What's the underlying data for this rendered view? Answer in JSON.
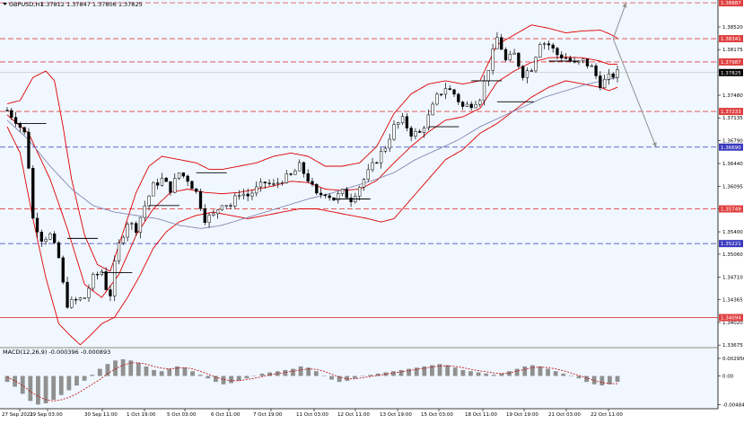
{
  "header": {
    "symbol": "GBPUSD,H1",
    "open": "1.37812",
    "high": "1.37847",
    "low": "1.37806",
    "close": "1.37825",
    "ohlc_text": "1.37812 1.37847 1.37806 1.37825"
  },
  "macd": {
    "label": "MACD(12,26,9) -0.000396 -0.000893",
    "ticks": [
      "0.002956",
      "0.00",
      "-0.004847"
    ]
  },
  "colors": {
    "background": "#F0F7FF",
    "bollinger": "#E00000",
    "ma": "#7A7AAA",
    "resistance": "#E04040",
    "support": "#3A3ABF",
    "candles": "#000000",
    "macd_hist": "#909090",
    "macd_signal": "#C00000",
    "arrows": "#909090",
    "price_tag": "#000000"
  },
  "chart_data": {
    "type": "candlestick",
    "ylim": [
      1.3365,
      1.3893
    ],
    "y_ticks": [
      "1.38520",
      "1.38175",
      "1.37480",
      "1.37135",
      "1.36790",
      "1.36440",
      "1.36095",
      "1.35750",
      "1.35400",
      "1.35060",
      "1.34710",
      "1.34365",
      "1.34020",
      "1.33675"
    ],
    "x_ticks": [
      "27 Sep 2021",
      "29 Sep 03:00",
      "30 Sep 11:00",
      "1 Oct 19:00",
      "5 Oct 03:00",
      "6 Oct 11:00",
      "7 Oct 19:00",
      "11 Oct 03:00",
      "12 Oct 11:00",
      "13 Oct 19:00",
      "15 Oct 03:00",
      "18 Oct 11:00",
      "19 Oct 19:00",
      "21 Oct 03:00",
      "22 Oct 11:00"
    ],
    "levels": [
      {
        "value": 1.38887,
        "label": "1.38887",
        "kind": "resistance"
      },
      {
        "value": 1.38341,
        "label": "1.38341",
        "kind": "resistance"
      },
      {
        "value": 1.37987,
        "label": "1.37987",
        "kind": "resistance"
      },
      {
        "value": 1.37233,
        "label": "1.37233",
        "kind": "resistance"
      },
      {
        "value": 1.3669,
        "label": "1.36690",
        "kind": "support"
      },
      {
        "value": 1.35749,
        "label": "1.35749",
        "kind": "resistance"
      },
      {
        "value": 1.35221,
        "label": "1.35221",
        "kind": "support"
      },
      {
        "value": 1.34094,
        "label": "1.34094",
        "kind": "solid"
      }
    ],
    "current_price": {
      "value": 1.37825,
      "label": "1.37825"
    },
    "price_path": [
      [
        0,
        1.3725
      ],
      [
        2,
        1.371
      ],
      [
        4,
        1.369
      ],
      [
        5,
        1.364
      ],
      [
        6,
        1.356
      ],
      [
        8,
        1.353
      ],
      [
        10,
        1.3535
      ],
      [
        12,
        1.35
      ],
      [
        13,
        1.346
      ],
      [
        14,
        1.343
      ],
      [
        16,
        1.3435
      ],
      [
        18,
        1.344
      ],
      [
        20,
        1.347
      ],
      [
        22,
        1.348
      ],
      [
        23,
        1.3455
      ],
      [
        24,
        1.3445
      ],
      [
        25,
        1.349
      ],
      [
        26,
        1.352
      ],
      [
        28,
        1.3555
      ],
      [
        30,
        1.3545
      ],
      [
        32,
        1.358
      ],
      [
        34,
        1.361
      ],
      [
        36,
        1.362
      ],
      [
        38,
        1.3605
      ],
      [
        40,
        1.363
      ],
      [
        42,
        1.362
      ],
      [
        44,
        1.36
      ],
      [
        46,
        1.356
      ],
      [
        48,
        1.3565
      ],
      [
        50,
        1.3585
      ],
      [
        52,
        1.358
      ],
      [
        54,
        1.36
      ],
      [
        56,
        1.3595
      ],
      [
        58,
        1.3605
      ],
      [
        60,
        1.3615
      ],
      [
        62,
        1.361
      ],
      [
        64,
        1.362
      ],
      [
        66,
        1.3625
      ],
      [
        68,
        1.364
      ],
      [
        70,
        1.362
      ],
      [
        72,
        1.3595
      ],
      [
        74,
        1.36
      ],
      [
        76,
        1.359
      ],
      [
        78,
        1.36
      ],
      [
        80,
        1.359
      ],
      [
        82,
        1.361
      ],
      [
        84,
        1.363
      ],
      [
        86,
        1.365
      ],
      [
        88,
        1.367
      ],
      [
        90,
        1.37
      ],
      [
        92,
        1.371
      ],
      [
        94,
        1.369
      ],
      [
        96,
        1.369
      ],
      [
        98,
        1.3715
      ],
      [
        100,
        1.3745
      ],
      [
        102,
        1.376
      ],
      [
        104,
        1.375
      ],
      [
        106,
        1.373
      ],
      [
        108,
        1.3735
      ],
      [
        110,
        1.3745
      ],
      [
        112,
        1.379
      ],
      [
        114,
        1.3835
      ],
      [
        115,
        1.382
      ],
      [
        116,
        1.38
      ],
      [
        118,
        1.381
      ],
      [
        120,
        1.378
      ],
      [
        122,
        1.379
      ],
      [
        124,
        1.383
      ],
      [
        126,
        1.3825
      ],
      [
        128,
        1.381
      ],
      [
        130,
        1.3805
      ],
      [
        132,
        1.3795
      ],
      [
        134,
        1.38
      ],
      [
        136,
        1.379
      ],
      [
        138,
        1.3765
      ],
      [
        140,
        1.3775
      ],
      [
        142,
        1.3782
      ]
    ],
    "ma_path": [
      [
        0,
        1.371
      ],
      [
        5,
        1.368
      ],
      [
        10,
        1.364
      ],
      [
        15,
        1.3605
      ],
      [
        20,
        1.358
      ],
      [
        25,
        1.357
      ],
      [
        30,
        1.3565
      ],
      [
        35,
        1.356
      ],
      [
        40,
        1.355
      ],
      [
        45,
        1.3545
      ],
      [
        50,
        1.355
      ],
      [
        55,
        1.356
      ],
      [
        60,
        1.357
      ],
      [
        65,
        1.358
      ],
      [
        70,
        1.359
      ],
      [
        75,
        1.3598
      ],
      [
        80,
        1.3608
      ],
      [
        85,
        1.3618
      ],
      [
        90,
        1.363
      ],
      [
        95,
        1.365
      ],
      [
        100,
        1.3665
      ],
      [
        105,
        1.368
      ],
      [
        110,
        1.37
      ],
      [
        115,
        1.3715
      ],
      [
        120,
        1.373
      ],
      [
        125,
        1.3745
      ],
      [
        130,
        1.3755
      ],
      [
        135,
        1.3765
      ],
      [
        140,
        1.3772
      ],
      [
        142,
        1.3775
      ]
    ],
    "bb_upper_path": [
      [
        0,
        1.3735
      ],
      [
        3,
        1.374
      ],
      [
        6,
        1.3775
      ],
      [
        9,
        1.3785
      ],
      [
        11,
        1.377
      ],
      [
        13,
        1.37
      ],
      [
        15,
        1.362
      ],
      [
        18,
        1.3535
      ],
      [
        21,
        1.349
      ],
      [
        24,
        1.348
      ],
      [
        27,
        1.354
      ],
      [
        30,
        1.36
      ],
      [
        33,
        1.364
      ],
      [
        36,
        1.3655
      ],
      [
        40,
        1.365
      ],
      [
        44,
        1.3645
      ],
      [
        47,
        1.3635
      ],
      [
        50,
        1.3635
      ],
      [
        54,
        1.364
      ],
      [
        58,
        1.3645
      ],
      [
        62,
        1.3655
      ],
      [
        66,
        1.366
      ],
      [
        70,
        1.3655
      ],
      [
        74,
        1.364
      ],
      [
        78,
        1.364
      ],
      [
        82,
        1.3645
      ],
      [
        86,
        1.367
      ],
      [
        90,
        1.372
      ],
      [
        94,
        1.375
      ],
      [
        98,
        1.3765
      ],
      [
        102,
        1.377
      ],
      [
        106,
        1.3765
      ],
      [
        110,
        1.377
      ],
      [
        114,
        1.3825
      ],
      [
        118,
        1.384
      ],
      [
        122,
        1.3855
      ],
      [
        126,
        1.385
      ],
      [
        130,
        1.3843
      ],
      [
        134,
        1.3846
      ],
      [
        138,
        1.3847
      ],
      [
        140,
        1.3842
      ],
      [
        142,
        1.3835
      ]
    ],
    "bb_lower_path": [
      [
        0,
        1.37
      ],
      [
        3,
        1.366
      ],
      [
        6,
        1.356
      ],
      [
        9,
        1.347
      ],
      [
        12,
        1.34
      ],
      [
        15,
        1.338
      ],
      [
        17,
        1.3368
      ],
      [
        19,
        1.338
      ],
      [
        22,
        1.34
      ],
      [
        25,
        1.341
      ],
      [
        28,
        1.344
      ],
      [
        31,
        1.3475
      ],
      [
        34,
        1.3515
      ],
      [
        37,
        1.354
      ],
      [
        40,
        1.3555
      ],
      [
        44,
        1.3565
      ],
      [
        48,
        1.357
      ],
      [
        52,
        1.3565
      ],
      [
        56,
        1.356
      ],
      [
        60,
        1.3565
      ],
      [
        64,
        1.357
      ],
      [
        68,
        1.3575
      ],
      [
        72,
        1.3575
      ],
      [
        76,
        1.357
      ],
      [
        80,
        1.3565
      ],
      [
        84,
        1.356
      ],
      [
        87,
        1.3555
      ],
      [
        90,
        1.356
      ],
      [
        94,
        1.359
      ],
      [
        98,
        1.362
      ],
      [
        102,
        1.365
      ],
      [
        106,
        1.3665
      ],
      [
        110,
        1.369
      ],
      [
        114,
        1.3705
      ],
      [
        118,
        1.3725
      ],
      [
        122,
        1.3745
      ],
      [
        126,
        1.376
      ],
      [
        130,
        1.377
      ],
      [
        134,
        1.3765
      ],
      [
        138,
        1.376
      ],
      [
        140,
        1.3755
      ],
      [
        142,
        1.376
      ]
    ],
    "bb_mid_path": [
      [
        0,
        1.3718
      ],
      [
        5,
        1.369
      ],
      [
        10,
        1.362
      ],
      [
        14,
        1.3545
      ],
      [
        18,
        1.346
      ],
      [
        22,
        1.344
      ],
      [
        26,
        1.3475
      ],
      [
        30,
        1.3535
      ],
      [
        34,
        1.3575
      ],
      [
        38,
        1.36
      ],
      [
        42,
        1.3605
      ],
      [
        46,
        1.36
      ],
      [
        50,
        1.3598
      ],
      [
        54,
        1.36
      ],
      [
        58,
        1.3605
      ],
      [
        62,
        1.361
      ],
      [
        66,
        1.3617
      ],
      [
        70,
        1.3615
      ],
      [
        74,
        1.3605
      ],
      [
        78,
        1.3603
      ],
      [
        82,
        1.3605
      ],
      [
        86,
        1.3618
      ],
      [
        90,
        1.3645
      ],
      [
        94,
        1.367
      ],
      [
        98,
        1.3692
      ],
      [
        102,
        1.371
      ],
      [
        106,
        1.3715
      ],
      [
        110,
        1.3728
      ],
      [
        114,
        1.3768
      ],
      [
        118,
        1.3785
      ],
      [
        122,
        1.3798
      ],
      [
        126,
        1.3805
      ],
      [
        130,
        1.3806
      ],
      [
        134,
        1.3805
      ],
      [
        138,
        1.38
      ],
      [
        140,
        1.3795
      ],
      [
        142,
        1.3795
      ]
    ],
    "arrows": [
      {
        "from": [
          141,
          1.38341
        ],
        "to": [
          144,
          1.38887
        ]
      },
      {
        "from": [
          141,
          1.38341
        ],
        "to": [
          151,
          1.3669
        ]
      }
    ],
    "macd_hist": [
      -0.001,
      -0.0018,
      -0.003,
      -0.0042,
      -0.0048,
      -0.0046,
      -0.004,
      -0.0032,
      -0.0024,
      -0.0016,
      -0.0008,
      0.0002,
      0.0012,
      0.002,
      0.0026,
      0.0028,
      0.0026,
      0.0022,
      0.0016,
      0.001,
      0.0008,
      0.0012,
      0.0016,
      0.0014,
      0.0008,
      0.0002,
      -0.0004,
      -0.001,
      -0.0014,
      -0.0012,
      -0.0008,
      -0.0004,
      0.0,
      0.0004,
      0.0006,
      0.0008,
      0.001,
      0.0012,
      0.0016,
      0.0014,
      0.0008,
      0.0,
      -0.0006,
      -0.001,
      -0.0008,
      -0.0004,
      0.0,
      0.0002,
      0.0004,
      0.0006,
      0.0008,
      0.001,
      0.0012,
      0.0014,
      0.0016,
      0.0018,
      0.002,
      0.0018,
      0.0014,
      0.001,
      0.0008,
      0.0006,
      0.0004,
      0.0002,
      0.0004,
      0.0008,
      0.0012,
      0.0016,
      0.0018,
      0.0016,
      0.0012,
      0.0008,
      0.0004,
      0.0,
      -0.0004,
      -0.001,
      -0.0014,
      -0.0016,
      -0.0014,
      -0.001
    ],
    "macd_signal": [
      -0.0002,
      -0.0008,
      -0.0016,
      -0.0026,
      -0.0034,
      -0.004,
      -0.0042,
      -0.004,
      -0.0036,
      -0.003,
      -0.0022,
      -0.0014,
      -0.0006,
      0.0004,
      0.0012,
      0.0018,
      0.0022,
      0.0022,
      0.002,
      0.0016,
      0.0013,
      0.0012,
      0.0013,
      0.0014,
      0.0012,
      0.0008,
      0.0003,
      -0.0002,
      -0.0006,
      -0.0008,
      -0.0008,
      -0.0006,
      -0.0004,
      -0.0001,
      0.0002,
      0.0004,
      0.0006,
      0.0008,
      0.001,
      0.0012,
      0.0011,
      0.0008,
      0.0003,
      -0.0002,
      -0.0005,
      -0.0005,
      -0.0003,
      -0.0001,
      0.0001,
      0.0003,
      0.0005,
      0.0007,
      0.0009,
      0.0011,
      0.0013,
      0.0015,
      0.0017,
      0.0017,
      0.0016,
      0.0014,
      0.0011,
      0.0009,
      0.0007,
      0.0005,
      0.0004,
      0.0005,
      0.0008,
      0.0011,
      0.0014,
      0.0015,
      0.0014,
      0.0012,
      0.0009,
      0.0005,
      0.0001,
      -0.0003,
      -0.0008,
      -0.0011,
      -0.0013,
      -0.0013
    ]
  }
}
